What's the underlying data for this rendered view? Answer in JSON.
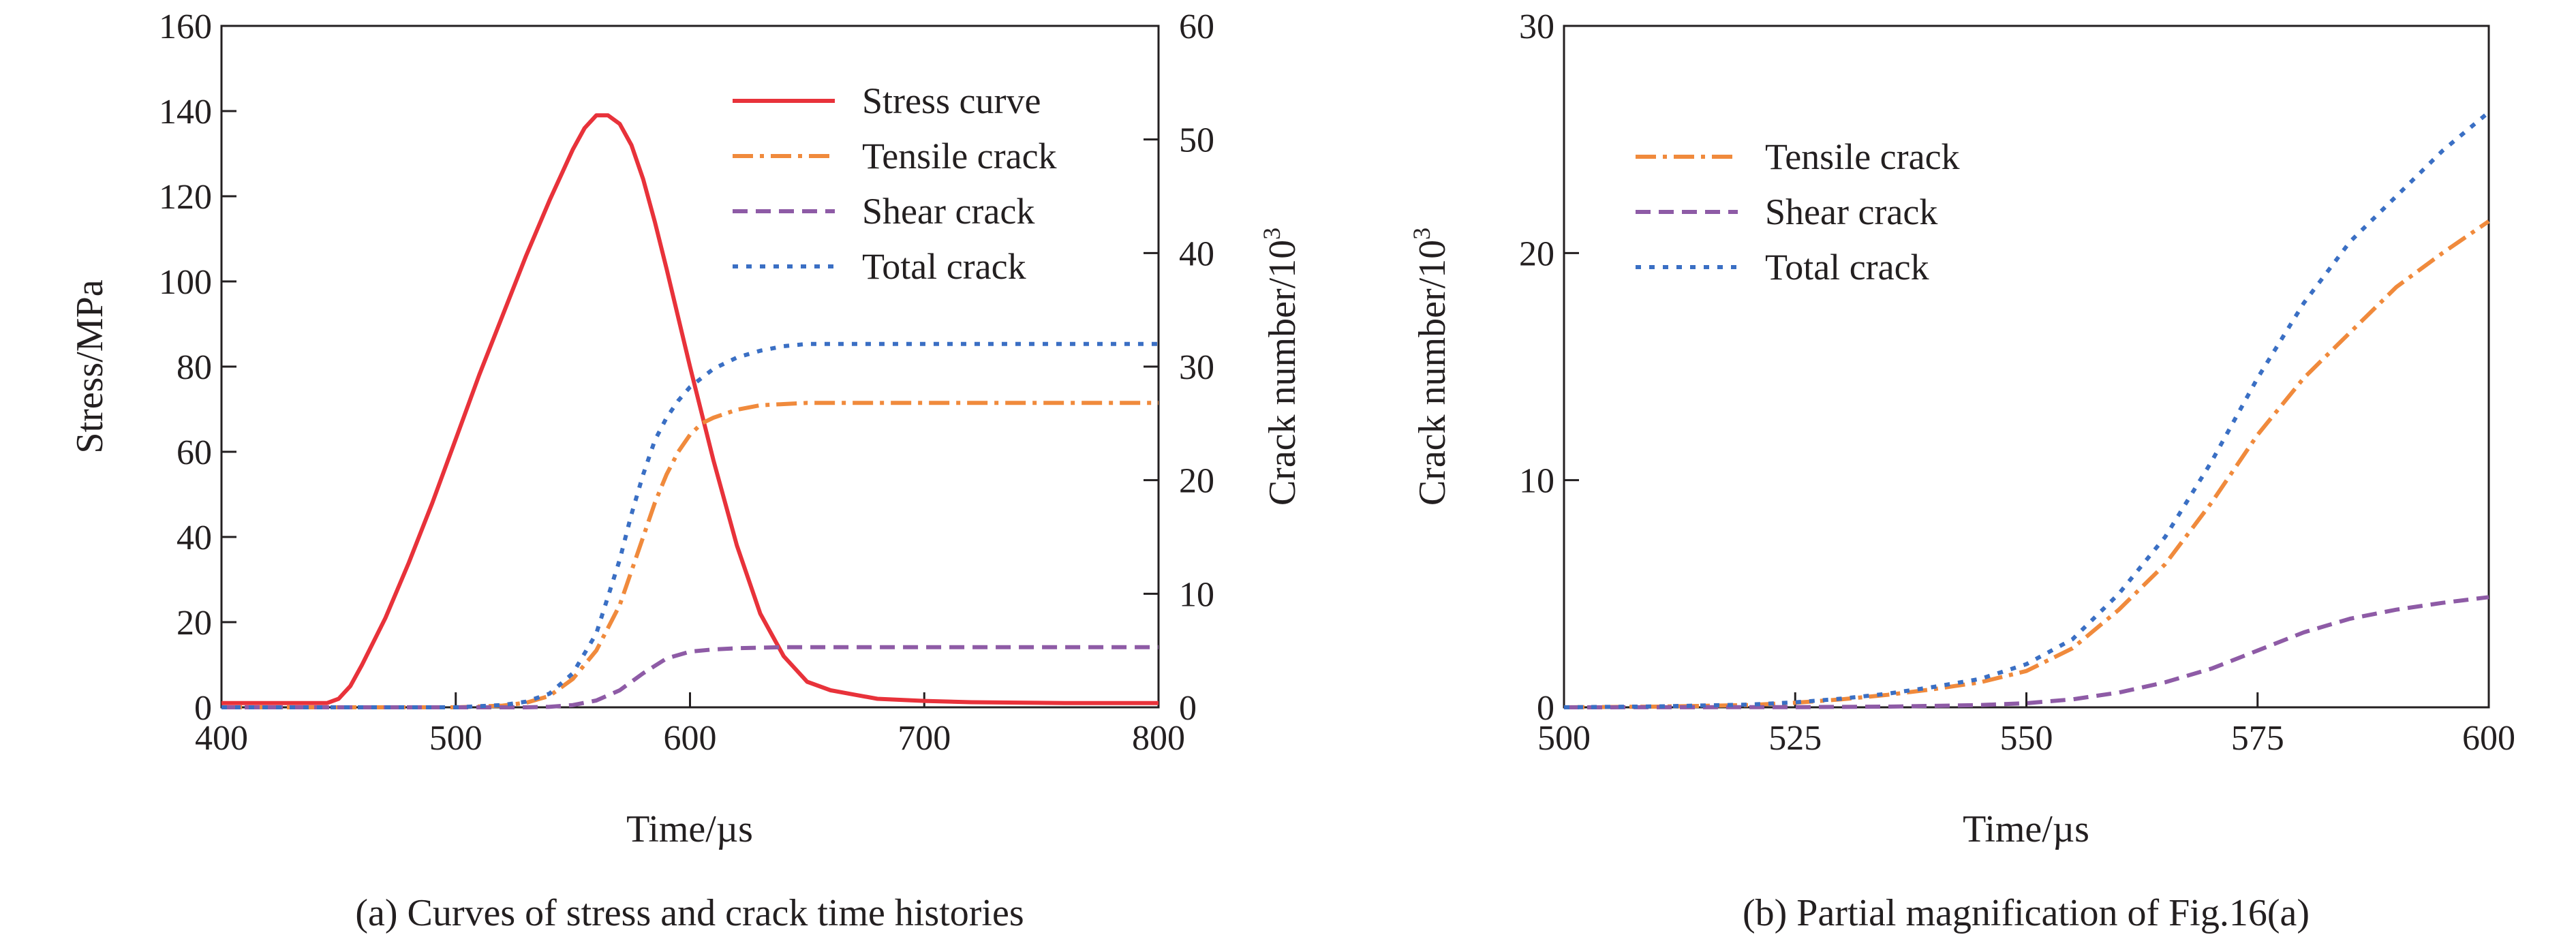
{
  "chart_data": [
    {
      "type": "line",
      "caption": "(a) Curves of stress and crack time histories",
      "xlabel": "Time/µs",
      "ylabel_left": "Stress/MPa",
      "ylabel_right_main": "Crack number/10",
      "ylabel_right_sup": "3",
      "xlim": [
        400,
        800
      ],
      "ylim_left": [
        0,
        160
      ],
      "ylim_right": [
        0,
        60
      ],
      "xticks": [
        "400",
        "500",
        "600",
        "700",
        "800"
      ],
      "yticks_left": [
        "0",
        "20",
        "40",
        "60",
        "80",
        "100",
        "120",
        "140",
        "160"
      ],
      "yticks_right": [
        "0",
        "10",
        "20",
        "30",
        "40",
        "50",
        "60"
      ],
      "legend_position": "top-right",
      "grid": false,
      "series": [
        {
          "name": "Stress curve",
          "axis": "left",
          "color": "#e8323a",
          "dash": "solid",
          "x": [
            400,
            445,
            450,
            455,
            460,
            470,
            480,
            490,
            500,
            510,
            520,
            530,
            540,
            550,
            555,
            560,
            565,
            570,
            575,
            580,
            585,
            590,
            600,
            610,
            620,
            630,
            640,
            650,
            660,
            670,
            680,
            700,
            720,
            740,
            760,
            780,
            800
          ],
          "y": [
            1,
            1,
            2,
            5,
            10,
            21,
            34,
            48,
            63,
            78,
            92,
            106,
            119,
            131,
            136,
            139,
            139,
            137,
            132,
            124,
            114,
            103,
            80,
            58,
            38,
            22,
            12,
            6,
            4,
            3,
            2,
            1.5,
            1.2,
            1.1,
            1,
            1,
            1
          ]
        },
        {
          "name": "Tensile crack",
          "axis": "right",
          "color": "#f08a3c",
          "dash": "dashdot",
          "x": [
            400,
            500,
            520,
            530,
            540,
            550,
            560,
            570,
            575,
            580,
            585,
            590,
            595,
            600,
            605,
            610,
            620,
            630,
            640,
            650,
            700,
            800
          ],
          "y": [
            0,
            0,
            0.15,
            0.4,
            1,
            2.5,
            5,
            9,
            12,
            15,
            18,
            20.5,
            22.5,
            24,
            25,
            25.5,
            26.2,
            26.6,
            26.7,
            26.8,
            26.8,
            26.8
          ]
        },
        {
          "name": "Shear crack",
          "axis": "right",
          "color": "#8e5ba6",
          "dash": "dashed",
          "x": [
            400,
            530,
            540,
            550,
            560,
            570,
            580,
            590,
            600,
            610,
            620,
            640,
            660,
            700,
            800
          ],
          "y": [
            0,
            0,
            0.05,
            0.2,
            0.6,
            1.5,
            3,
            4.3,
            4.9,
            5.1,
            5.2,
            5.3,
            5.3,
            5.3,
            5.3
          ]
        },
        {
          "name": "Total crack",
          "axis": "right",
          "color": "#3a6fc4",
          "dash": "dotted",
          "x": [
            400,
            500,
            520,
            530,
            540,
            550,
            560,
            570,
            575,
            580,
            585,
            590,
            595,
            600,
            610,
            620,
            630,
            640,
            650,
            660,
            700,
            800
          ],
          "y": [
            0,
            0,
            0.2,
            0.5,
            1.2,
            3,
            6.5,
            13,
            17,
            20.5,
            23.5,
            25.5,
            27,
            28.2,
            29.8,
            30.8,
            31.4,
            31.8,
            32,
            32,
            32,
            32
          ]
        }
      ]
    },
    {
      "type": "line",
      "caption": "(b) Partial magnification of Fig.16(a)",
      "xlabel": "Time/µs",
      "ylabel_main": "Crack number/10",
      "ylabel_sup": "3",
      "xlim": [
        500,
        600
      ],
      "ylim": [
        0,
        30
      ],
      "xticks": [
        "500",
        "525",
        "550",
        "575",
        "600"
      ],
      "yticks": [
        "0",
        "10",
        "20",
        "30"
      ],
      "legend_position": "top-left",
      "grid": false,
      "series": [
        {
          "name": "Tensile crack",
          "color": "#f08a3c",
          "dash": "dashdot",
          "x": [
            500,
            510,
            520,
            525,
            530,
            535,
            540,
            545,
            550,
            555,
            560,
            565,
            570,
            575,
            580,
            585,
            590,
            595,
            600
          ],
          "y": [
            0,
            0.03,
            0.1,
            0.2,
            0.35,
            0.55,
            0.8,
            1.1,
            1.6,
            2.6,
            4.3,
            6.3,
            9,
            12,
            14.5,
            16.5,
            18.5,
            20,
            21.4
          ]
        },
        {
          "name": "Shear crack",
          "color": "#8e5ba6",
          "dash": "dashed",
          "x": [
            500,
            525,
            535,
            545,
            550,
            555,
            560,
            565,
            570,
            575,
            580,
            585,
            590,
            595,
            600
          ],
          "y": [
            0,
            0.01,
            0.03,
            0.1,
            0.18,
            0.35,
            0.65,
            1.1,
            1.7,
            2.5,
            3.3,
            3.9,
            4.3,
            4.6,
            4.85
          ]
        },
        {
          "name": "Total crack",
          "color": "#3a6fc4",
          "dash": "dotted",
          "x": [
            500,
            510,
            520,
            525,
            530,
            535,
            540,
            545,
            550,
            555,
            560,
            565,
            570,
            575,
            580,
            585,
            590,
            595,
            600
          ],
          "y": [
            0,
            0.04,
            0.12,
            0.22,
            0.38,
            0.6,
            0.9,
            1.25,
            1.9,
            3.0,
            5.0,
            7.5,
            10.8,
            14.5,
            17.8,
            20.5,
            22.5,
            24.5,
            26.2
          ]
        }
      ]
    }
  ]
}
